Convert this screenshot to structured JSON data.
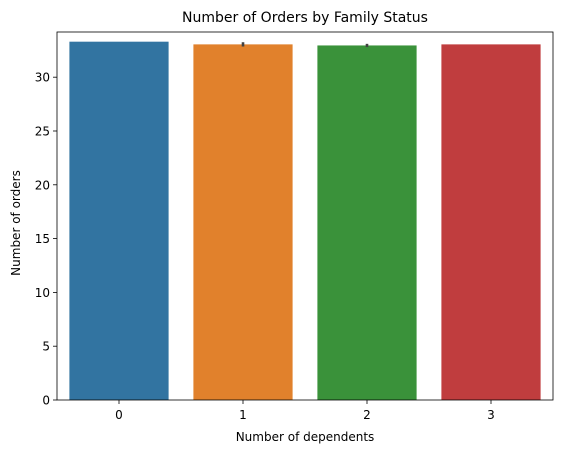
{
  "chart_data": {
    "type": "bar",
    "title": "Number of Orders by Family Status",
    "xlabel": "Number of dependents",
    "ylabel": "Number of orders",
    "categories": [
      "0",
      "1",
      "2",
      "3"
    ],
    "values": [
      33.3,
      33.05,
      32.95,
      33.05
    ],
    "error_low": [
      33.3,
      32.85,
      32.8,
      33.05
    ],
    "error_high": [
      33.3,
      33.25,
      33.1,
      33.05
    ],
    "colors": [
      "#3274a1",
      "#e1812c",
      "#3a923a",
      "#c03d3e"
    ],
    "error_color": "#424242",
    "ylim": [
      0,
      34.2
    ],
    "yticks": [
      0,
      5,
      10,
      15,
      20,
      25,
      30
    ],
    "grid": false,
    "legend": "none"
  }
}
